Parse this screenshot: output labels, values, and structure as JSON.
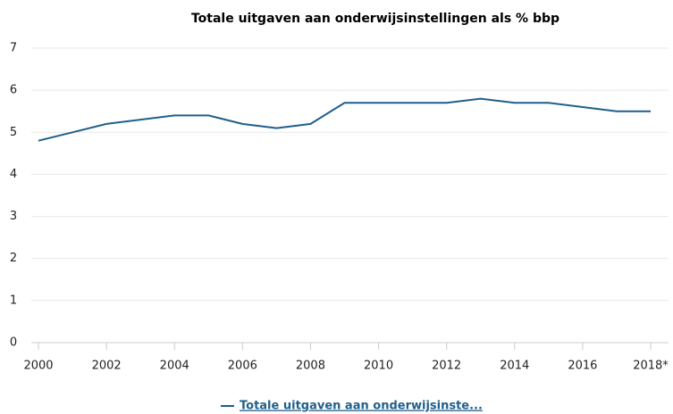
{
  "chart_data": {
    "type": "line",
    "title": "Totale uitgaven aan onderwijsinstellingen als % bbp",
    "categories": [
      "2000",
      null,
      "2002",
      null,
      "2004",
      null,
      "2006",
      null,
      "2008",
      null,
      "2010",
      null,
      "2012",
      null,
      "2014",
      null,
      "2016",
      null,
      "2018*"
    ],
    "series": [
      {
        "name": "Totale uitgaven aan onderwijsinste...",
        "color": "#1f5f8b",
        "values": [
          4.8,
          5.0,
          5.2,
          5.3,
          5.4,
          5.4,
          5.2,
          5.1,
          5.2,
          5.7,
          5.7,
          5.7,
          5.7,
          5.8,
          5.7,
          5.7,
          5.6,
          5.5,
          5.5
        ]
      }
    ],
    "ylim": [
      0,
      7
    ],
    "yticks": [
      0,
      1,
      2,
      3,
      4,
      5,
      6,
      7
    ],
    "grid": true
  }
}
